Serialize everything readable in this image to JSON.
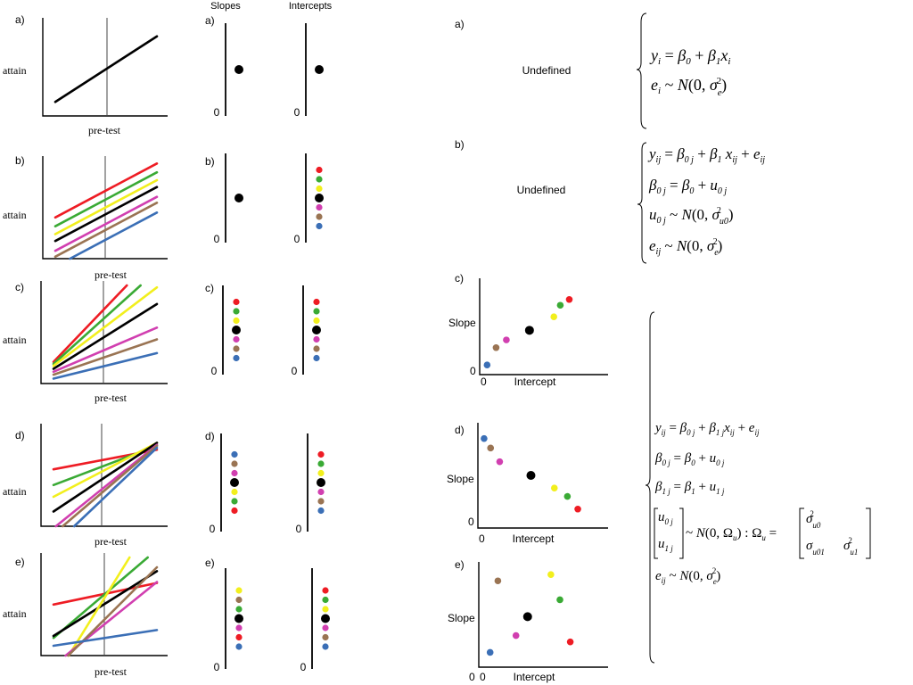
{
  "headers": {
    "slopes": "Slopes",
    "intercepts": "Intercepts"
  },
  "axis_labels": {
    "y": "attain",
    "x": "pre-test",
    "slope": "Slope",
    "intercept": "Intercept",
    "zero": "0"
  },
  "undefined_text": "Undefined",
  "colors": {
    "red": "#ee1c24",
    "green": "#3aaa35",
    "yellow": "#f2ef1d",
    "black": "#000000",
    "magenta": "#d13fb0",
    "brown": "#9a7453",
    "blue": "#3b6fb6"
  },
  "panels": [
    {
      "id": "a",
      "label": "a)",
      "lines": [
        {
          "color": "black",
          "intercept": 0.15,
          "slope": 0.7
        }
      ],
      "slope_dots": [
        "black"
      ],
      "intercept_dots": [
        "black"
      ],
      "scatter": null
    },
    {
      "id": "b",
      "label": "b)",
      "lines": [
        {
          "color": "red",
          "intercept": 0.42,
          "slope": 0.55
        },
        {
          "color": "green",
          "intercept": 0.33,
          "slope": 0.55
        },
        {
          "color": "yellow",
          "intercept": 0.25,
          "slope": 0.55
        },
        {
          "color": "black",
          "intercept": 0.18,
          "slope": 0.55
        },
        {
          "color": "magenta",
          "intercept": 0.08,
          "slope": 0.55
        },
        {
          "color": "brown",
          "intercept": 0.02,
          "slope": 0.55
        },
        {
          "color": "blue",
          "intercept": -0.08,
          "slope": 0.55
        }
      ],
      "slope_dots": [
        "black"
      ],
      "intercept_dots": [
        "red",
        "green",
        "yellow",
        "black",
        "magenta",
        "brown",
        "blue"
      ],
      "scatter": null
    },
    {
      "id": "c",
      "label": "c)",
      "lines": [
        {
          "color": "red",
          "intercept": 0.22,
          "slope": 1.1
        },
        {
          "color": "green",
          "intercept": 0.2,
          "slope": 0.95
        },
        {
          "color": "yellow",
          "intercept": 0.18,
          "slope": 0.8
        },
        {
          "color": "black",
          "intercept": 0.15,
          "slope": 0.66
        },
        {
          "color": "magenta",
          "intercept": 0.12,
          "slope": 0.45
        },
        {
          "color": "brown",
          "intercept": 0.09,
          "slope": 0.36
        },
        {
          "color": "blue",
          "intercept": 0.05,
          "slope": 0.26
        }
      ],
      "slope_dots": [
        "red",
        "green",
        "yellow",
        "black",
        "magenta",
        "brown",
        "blue"
      ],
      "intercept_dots": [
        "red",
        "green",
        "yellow",
        "black",
        "magenta",
        "brown",
        "blue"
      ],
      "scatter": {
        "points": [
          {
            "color": "blue",
            "intercept": 0.03,
            "slope": 0.1
          },
          {
            "color": "brown",
            "intercept": 0.1,
            "slope": 0.28
          },
          {
            "color": "magenta",
            "intercept": 0.18,
            "slope": 0.36
          },
          {
            "color": "black",
            "intercept": 0.36,
            "slope": 0.46
          },
          {
            "color": "yellow",
            "intercept": 0.55,
            "slope": 0.6
          },
          {
            "color": "green",
            "intercept": 0.6,
            "slope": 0.72
          },
          {
            "color": "red",
            "intercept": 0.67,
            "slope": 0.78
          }
        ]
      }
    },
    {
      "id": "d",
      "label": "d)",
      "lines": [
        {
          "color": "red",
          "intercept": 0.58,
          "slope": 0.2
        },
        {
          "color": "green",
          "intercept": 0.42,
          "slope": 0.4
        },
        {
          "color": "yellow",
          "intercept": 0.3,
          "slope": 0.55
        },
        {
          "color": "black",
          "intercept": 0.15,
          "slope": 0.7
        },
        {
          "color": "magenta",
          "intercept": -0.02,
          "slope": 0.85
        },
        {
          "color": "brown",
          "intercept": -0.08,
          "slope": 0.9
        },
        {
          "color": "blue",
          "intercept": -0.2,
          "slope": 1.0
        }
      ],
      "slope_dots": [
        "blue",
        "brown",
        "magenta",
        "black",
        "yellow",
        "green",
        "red"
      ],
      "intercept_dots": [
        "red",
        "green",
        "yellow",
        "black",
        "magenta",
        "brown",
        "blue"
      ],
      "scatter": {
        "points": [
          {
            "color": "blue",
            "intercept": 0.02,
            "slope": 0.85
          },
          {
            "color": "brown",
            "intercept": 0.07,
            "slope": 0.76
          },
          {
            "color": "magenta",
            "intercept": 0.14,
            "slope": 0.63
          },
          {
            "color": "black",
            "intercept": 0.38,
            "slope": 0.5
          },
          {
            "color": "yellow",
            "intercept": 0.56,
            "slope": 0.38
          },
          {
            "color": "green",
            "intercept": 0.66,
            "slope": 0.3
          },
          {
            "color": "red",
            "intercept": 0.74,
            "slope": 0.18
          }
        ]
      }
    },
    {
      "id": "e",
      "label": "e)",
      "lines": [
        {
          "color": "red",
          "intercept": 0.52,
          "slope": 0.22
        },
        {
          "color": "green",
          "intercept": 0.18,
          "slope": 0.9
        },
        {
          "color": "black",
          "intercept": 0.2,
          "slope": 0.66
        },
        {
          "color": "yellow",
          "intercept": -0.25,
          "slope": 1.7
        },
        {
          "color": "magenta",
          "intercept": -0.1,
          "slope": 0.85
        },
        {
          "color": "brown",
          "intercept": -0.15,
          "slope": 1.05
        },
        {
          "color": "blue",
          "intercept": 0.1,
          "slope": 0.16
        }
      ],
      "slope_dots": [
        "yellow",
        "brown",
        "green",
        "black",
        "magenta",
        "red",
        "blue"
      ],
      "intercept_dots": [
        "red",
        "green",
        "yellow",
        "black",
        "magenta",
        "brown",
        "blue"
      ],
      "scatter": {
        "points": [
          {
            "color": "blue",
            "intercept": 0.06,
            "slope": 0.14
          },
          {
            "color": "brown",
            "intercept": 0.12,
            "slope": 0.82
          },
          {
            "color": "magenta",
            "intercept": 0.26,
            "slope": 0.3
          },
          {
            "color": "black",
            "intercept": 0.35,
            "slope": 0.48
          },
          {
            "color": "yellow",
            "intercept": 0.53,
            "slope": 0.88
          },
          {
            "color": "green",
            "intercept": 0.6,
            "slope": 0.64
          },
          {
            "color": "red",
            "intercept": 0.68,
            "slope": 0.24
          }
        ]
      }
    }
  ],
  "models": {
    "a": [
      "y_i = β_0 + β_1 x_i",
      "e_i ~ N(0, σ²_e)"
    ],
    "b": [
      "y_ij = β_0j + β_1 x_ij + e_ij",
      "β_0j = β_0 + u_0j",
      "u_0j ~ N(0, σ²_u0)",
      "e_ij ~ N(0, σ²_e)"
    ],
    "cde": [
      "y_ij = β_0j + β_1j x_ij + e_ij",
      "β_0j = β_0 + u_0j",
      "β_1j = β_1 + u_1j",
      "[u_0j, u_1j] ~ N(0, Ω_u) : Ω_u = [σ²_u0 ; σ_u01 σ²_u1]",
      "e_ij ~ N(0, σ²_e)"
    ]
  }
}
